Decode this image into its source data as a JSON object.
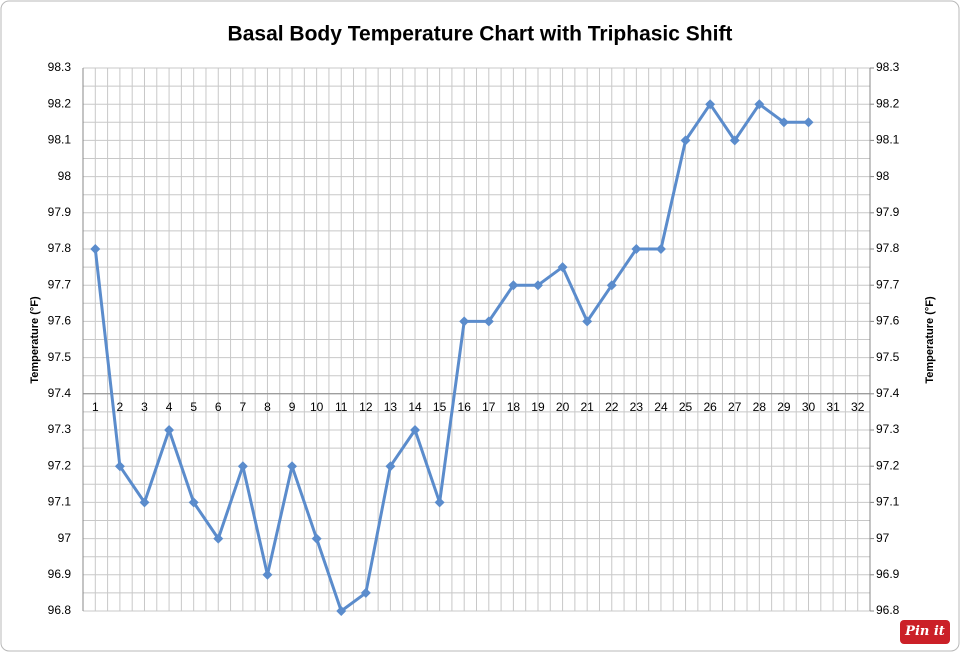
{
  "chart_data": {
    "type": "line",
    "title": "Basal Body Temperature Chart with Triphasic Shift",
    "y_label": "Temperature (°F)",
    "y2_label": "Temperature (°F)",
    "categories": [
      "1",
      "2",
      "3",
      "4",
      "5",
      "6",
      "7",
      "8",
      "9",
      "10",
      "11",
      "12",
      "13",
      "14",
      "15",
      "16",
      "17",
      "18",
      "19",
      "20",
      "21",
      "22",
      "23",
      "24",
      "25",
      "26",
      "27",
      "28",
      "29",
      "30",
      "31",
      "32"
    ],
    "series": [
      {
        "name": "Temperature",
        "color": "#5b8ccc",
        "values": [
          97.8,
          97.2,
          97.1,
          97.3,
          97.1,
          97.0,
          97.2,
          96.9,
          97.2,
          97.0,
          96.8,
          96.85,
          97.2,
          97.3,
          97.1,
          97.6,
          97.6,
          97.7,
          97.7,
          97.75,
          97.6,
          97.7,
          97.8,
          97.8,
          98.1,
          98.2,
          98.1,
          98.2,
          98.15,
          98.15,
          null,
          null
        ]
      }
    ],
    "ylim": [
      96.8,
      98.3
    ],
    "yticks": [
      96.8,
      96.9,
      97,
      97.1,
      97.2,
      97.3,
      97.4,
      97.5,
      97.6,
      97.7,
      97.8,
      97.9,
      98,
      98.1,
      98.2,
      98.3
    ],
    "y2lim": [
      96.8,
      98.3
    ],
    "y2ticks": [
      96.8,
      96.9,
      97,
      97.1,
      97.2,
      97.3,
      97.4,
      97.5,
      97.6,
      97.7,
      97.8,
      97.9,
      98,
      98.1,
      98.2,
      98.3
    ],
    "x_axis_crosses": 97.4,
    "grid": true
  },
  "pin_label": "Pin it"
}
